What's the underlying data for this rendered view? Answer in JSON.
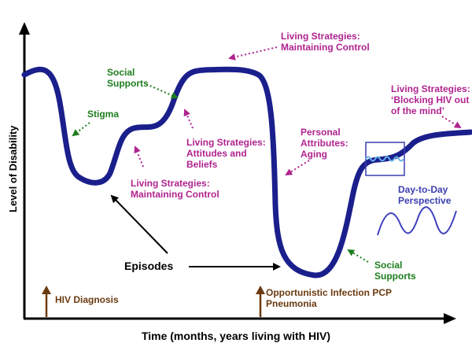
{
  "colors": {
    "axis": "#000000",
    "curve": "#1a1f8c",
    "magenta": "#b0238f",
    "green": "#1e7d1e",
    "brown": "#6b3a10",
    "blue": "#3b3fb0",
    "wave": "#4040c0"
  },
  "axes": {
    "y_label": "Level of Disability",
    "x_label": "Time (months, years living with HIV)"
  },
  "labels": {
    "living_control_top_1": "Living Strategies:",
    "living_control_top_2": "Maintaining Control",
    "social_supports_left_1": "Social",
    "social_supports_left_2": "Supports",
    "stigma": "Stigma",
    "attitudes_1": "Living Strategies:",
    "attitudes_2": "Attitudes and",
    "attitudes_3": "Beliefs",
    "living_control_bottom_1": "Living Strategies:",
    "living_control_bottom_2": "Maintaining Control",
    "aging_1": "Personal",
    "aging_2": "Attributes:",
    "aging_3": "Aging",
    "blocking_1": "Living Strategies:",
    "blocking_2": "‘Blocking HIV out",
    "blocking_3": "of the mind’",
    "day_to_day_1": "Day-to-Day",
    "day_to_day_2": "Perspective",
    "episodes": "Episodes",
    "social_supports_right_1": "Social",
    "social_supports_right_2": "Supports",
    "hiv_diagnosis": "HIV Diagnosis",
    "pcp_1": "Opportunistic Infection PCP",
    "pcp_2": "Pneumonia"
  }
}
